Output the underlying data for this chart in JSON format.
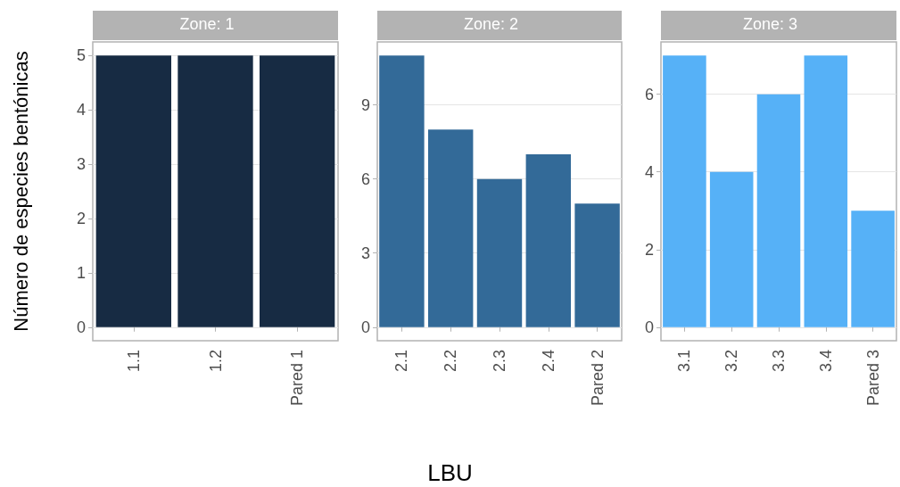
{
  "chart_data": [
    {
      "type": "bar",
      "title": "Zone: 1",
      "ylabel": "Número de especies bentónicas",
      "categories": [
        "1.1",
        "1.2",
        "Pared 1"
      ],
      "series": [
        {
          "color": "#172b43",
          "values": [
            5,
            5,
            5
          ]
        }
      ],
      "ylim": [
        -0.25,
        5.25
      ],
      "yticks": [
        0,
        1,
        2,
        3,
        4,
        5
      ],
      "grid": "y"
    },
    {
      "type": "bar",
      "title": "Zone: 2",
      "xlabel": "LBU",
      "categories": [
        "2.1",
        "2.2",
        "2.3",
        "2.4",
        "Pared 2"
      ],
      "series": [
        {
          "color": "#336a98",
          "values": [
            11,
            8,
            6,
            7,
            5
          ]
        }
      ],
      "ylim": [
        -0.55,
        11.55
      ],
      "yticks": [
        0,
        3,
        6,
        9
      ],
      "grid": "y"
    },
    {
      "type": "bar",
      "title": "Zone: 3",
      "categories": [
        "3.1",
        "3.2",
        "3.3",
        "3.4",
        "Pared 3"
      ],
      "series": [
        {
          "color": "#56b1f7",
          "values": [
            7,
            4,
            6,
            7,
            3
          ]
        }
      ],
      "ylim": [
        -0.35,
        7.35
      ],
      "yticks": [
        0,
        2,
        4,
        6
      ],
      "grid": "y"
    }
  ]
}
